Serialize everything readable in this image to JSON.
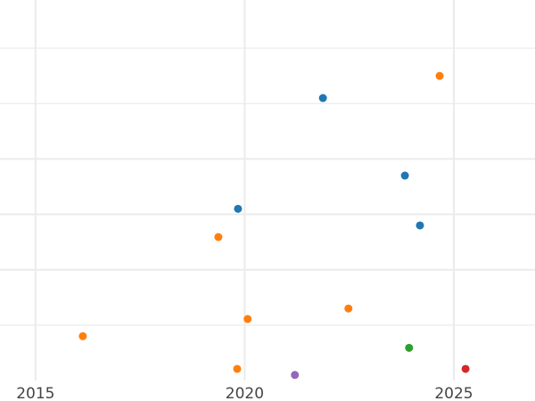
{
  "chart_data": {
    "type": "scatter",
    "title": "",
    "xlabel": "",
    "ylabel": "",
    "xlim": [
      2014.15,
      2026.94
    ],
    "ylim": [
      0,
      6.87
    ],
    "grid": true,
    "x_ticks": [
      "2015",
      "2020",
      "2025"
    ],
    "x_tick_values": [
      2015,
      2020,
      2025
    ],
    "y_gridlines": [
      1,
      2,
      3,
      4,
      5,
      6
    ],
    "y_major_gridlines": [
      2,
      3,
      4
    ],
    "y_tick_labels_shown": false,
    "colors": {
      "blue": "#1f77b4",
      "orange": "#ff7f0e",
      "green": "#2ca02c",
      "red": "#d62728",
      "purple": "#9467bd",
      "grid": "#ebebeb"
    },
    "points": [
      {
        "x": 2024.66,
        "y": 5.5,
        "color": "#ff7f0e"
      },
      {
        "x": 2021.87,
        "y": 5.1,
        "color": "#1f77b4"
      },
      {
        "x": 2023.83,
        "y": 3.7,
        "color": "#1f77b4"
      },
      {
        "x": 2019.84,
        "y": 3.1,
        "color": "#1f77b4"
      },
      {
        "x": 2024.19,
        "y": 2.8,
        "color": "#1f77b4"
      },
      {
        "x": 2019.37,
        "y": 2.59,
        "color": "#ff7f0e"
      },
      {
        "x": 2022.48,
        "y": 1.3,
        "color": "#ff7f0e"
      },
      {
        "x": 2020.07,
        "y": 1.11,
        "color": "#ff7f0e"
      },
      {
        "x": 2016.13,
        "y": 0.8,
        "color": "#ff7f0e"
      },
      {
        "x": 2023.93,
        "y": 0.59,
        "color": "#2ca02c"
      },
      {
        "x": 2019.82,
        "y": 0.21,
        "color": "#ff7f0e"
      },
      {
        "x": 2025.28,
        "y": 0.21,
        "color": "#d62728"
      },
      {
        "x": 2021.2,
        "y": 0.1,
        "color": "#9467bd"
      }
    ]
  }
}
